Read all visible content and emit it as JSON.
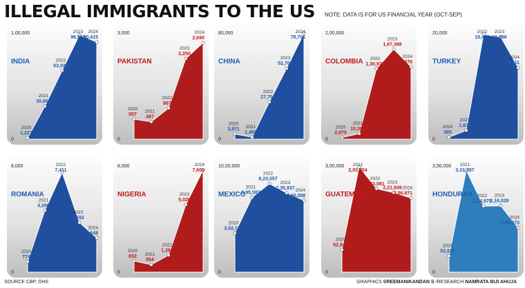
{
  "header": {
    "title": "ILLEGAL IMMIGRANTS TO THE US",
    "note": "NOTE: DATA IS FOR US FINANCIAL YEAR (OCT-SEP)"
  },
  "footer": {
    "source": "SOURCE CBP, DHS",
    "credit_prefix": "GRAPHICS",
    "graphics_name": "SREEMANIKANDAN S",
    "research_prefix": "/RESEARCH",
    "research_name": "NAMRATA BIJI AHUJA"
  },
  "colors": {
    "blue": "#1f4f9e",
    "red": "#b01c1c",
    "light_blue": "#2e7dbd",
    "label_blue": "#1f5bb0",
    "label_red": "#c0191a"
  },
  "chart_data": [
    {
      "type": "area",
      "title": "INDIA",
      "color": "blue",
      "x": [
        "2020",
        "2021",
        "2022",
        "2023",
        "2024"
      ],
      "values": [
        1227,
        30662,
        63927,
        96917,
        90415
      ],
      "value_labels": [
        "1,227",
        "30,662",
        "63,927",
        "96,917",
        "90,415"
      ],
      "ylim": [
        0,
        100000
      ],
      "ytick_labels": [
        "0",
        "1,00,000"
      ]
    },
    {
      "type": "area",
      "title": "PAKISTAN",
      "color": "red",
      "x": [
        "2020",
        "2021",
        "2022",
        "2023",
        "2024"
      ],
      "values": [
        557,
        487,
        867,
        2250,
        2690
      ],
      "value_labels": [
        "557",
        "487",
        "867",
        "2,250",
        "2,690"
      ],
      "ylim": [
        0,
        3000
      ],
      "ytick_labels": [
        "0",
        "3,000"
      ]
    },
    {
      "type": "area",
      "title": "CHINA",
      "color": "blue",
      "x": [
        "2020",
        "2021",
        "2022",
        "2023",
        "2024"
      ],
      "values": [
        3871,
        1468,
        27756,
        52700,
        78701
      ],
      "value_labels": [
        "3,871",
        "1,468",
        "27,756",
        "52,700",
        "78,701"
      ],
      "ylim": [
        0,
        80000
      ],
      "ytick_labels": [
        "0",
        "80,000"
      ]
    },
    {
      "type": "area",
      "title": "COLOMBIA",
      "color": "red",
      "x": [
        "2020",
        "2021",
        "2022",
        "2023",
        "2024"
      ],
      "values": [
        2970,
        10381,
        130971,
        167388,
        134676
      ],
      "value_labels": [
        "2,970",
        "10,381",
        "1,30,971",
        "1,67,388",
        "1,34,676"
      ],
      "ylim": [
        0,
        200000
      ],
      "ytick_labels": [
        "0",
        "2,00,000"
      ]
    },
    {
      "type": "area",
      "title": "TURKEY",
      "color": "blue",
      "x": [
        "2020",
        "2021",
        "2022",
        "2023",
        "2024"
      ],
      "values": [
        385,
        1638,
        19470,
        18986,
        13311
      ],
      "value_labels": [
        "385",
        "1,638",
        "19,470",
        "18,986",
        "13,311"
      ],
      "ylim": [
        0,
        20000
      ],
      "ytick_labels": [
        "0",
        "20,000"
      ]
    },
    {
      "type": "area",
      "title": "ROMANIA",
      "color": "blue",
      "x": [
        "2020",
        "2021",
        "2022",
        "2023",
        "2024"
      ],
      "values": [
        774,
        4596,
        7411,
        3692,
        2548
      ],
      "value_labels": [
        "774",
        "4,596",
        "7,411",
        "3,692",
        "2,548"
      ],
      "ylim": [
        0,
        8000
      ],
      "ytick_labels": [
        "0",
        "8,000"
      ]
    },
    {
      "type": "area",
      "title": "NIGERIA",
      "color": "red",
      "x": [
        "2020",
        "2021",
        "2022",
        "2023",
        "2024"
      ],
      "values": [
        832,
        554,
        1265,
        5020,
        7600
      ],
      "value_labels": [
        "832",
        "554",
        "1,265",
        "5,020",
        "7,600"
      ],
      "ylim": [
        0,
        8000
      ],
      "ytick_labels": [
        "0",
        "8,000"
      ]
    },
    {
      "type": "area",
      "title": "MEXICO",
      "color": "blue",
      "x": [
        "2020",
        "2021",
        "2022",
        "2023",
        "2024"
      ],
      "values": [
        362105,
        695582,
        823057,
        735937,
        668088
      ],
      "value_labels": [
        "3,62,105",
        "6,95,582",
        "8,23,057",
        "7,35,937",
        "6,68,088"
      ],
      "ylim": [
        0,
        1000000
      ],
      "ytick_labels": [
        "0",
        "10,00,000"
      ]
    },
    {
      "type": "area",
      "title": "GUATEMALA",
      "color": "red",
      "x": [
        "2020",
        "2021",
        "2022",
        "2023",
        "2024"
      ],
      "values": [
        62848,
        293954,
        233061,
        221849,
        206971
      ],
      "value_labels": [
        "62,848",
        "2,93,954",
        "2,33,061",
        "2,21,849",
        "2,06,971"
      ],
      "ylim": [
        0,
        300000
      ],
      "ytick_labels": [
        "0",
        "3,00,000"
      ]
    },
    {
      "type": "area",
      "title": "HONDURAS",
      "color": "light_blue",
      "x": [
        "2020",
        "2021",
        "2022",
        "2023",
        "2024"
      ],
      "values": [
        52920,
        331397,
        214975,
        216028,
        144373
      ],
      "value_labels": [
        "52,920",
        "3,31,397",
        "2,14,975",
        "2,16,028",
        "1,44,373"
      ],
      "ylim": [
        0,
        350000
      ],
      "ytick_labels": [
        "0",
        "3,50,000"
      ]
    }
  ]
}
